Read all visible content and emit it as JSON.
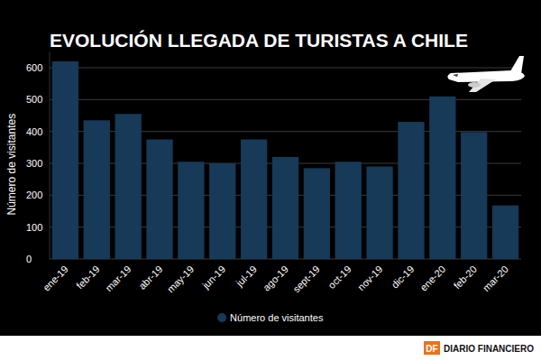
{
  "chart_data": {
    "type": "bar",
    "title": "EVOLUCIÓN LLEGADA DE TURISTAS A CHILE",
    "y_label": "Número de visitantes",
    "categories": [
      "ene-19",
      "feb-19",
      "mar-19",
      "abr-19",
      "may-19",
      "jun-19",
      "jul-19",
      "ago-19",
      "sept-19",
      "oct-19",
      "nov-19",
      "dic-19",
      "ene-20",
      "feb-20",
      "mar-20"
    ],
    "series": [
      {
        "name": "Número de visitantes",
        "color": "#163a58",
        "values": [
          620,
          435,
          455,
          375,
          305,
          300,
          375,
          320,
          285,
          305,
          290,
          430,
          510,
          398,
          168
        ]
      }
    ],
    "ylim": [
      0,
      650
    ],
    "yticks": [
      0,
      100,
      200,
      300,
      400,
      500,
      600
    ],
    "grid": true,
    "legend": "bottom",
    "annotations": [
      "DF",
      "DIARIO FINANCIERO"
    ]
  }
}
